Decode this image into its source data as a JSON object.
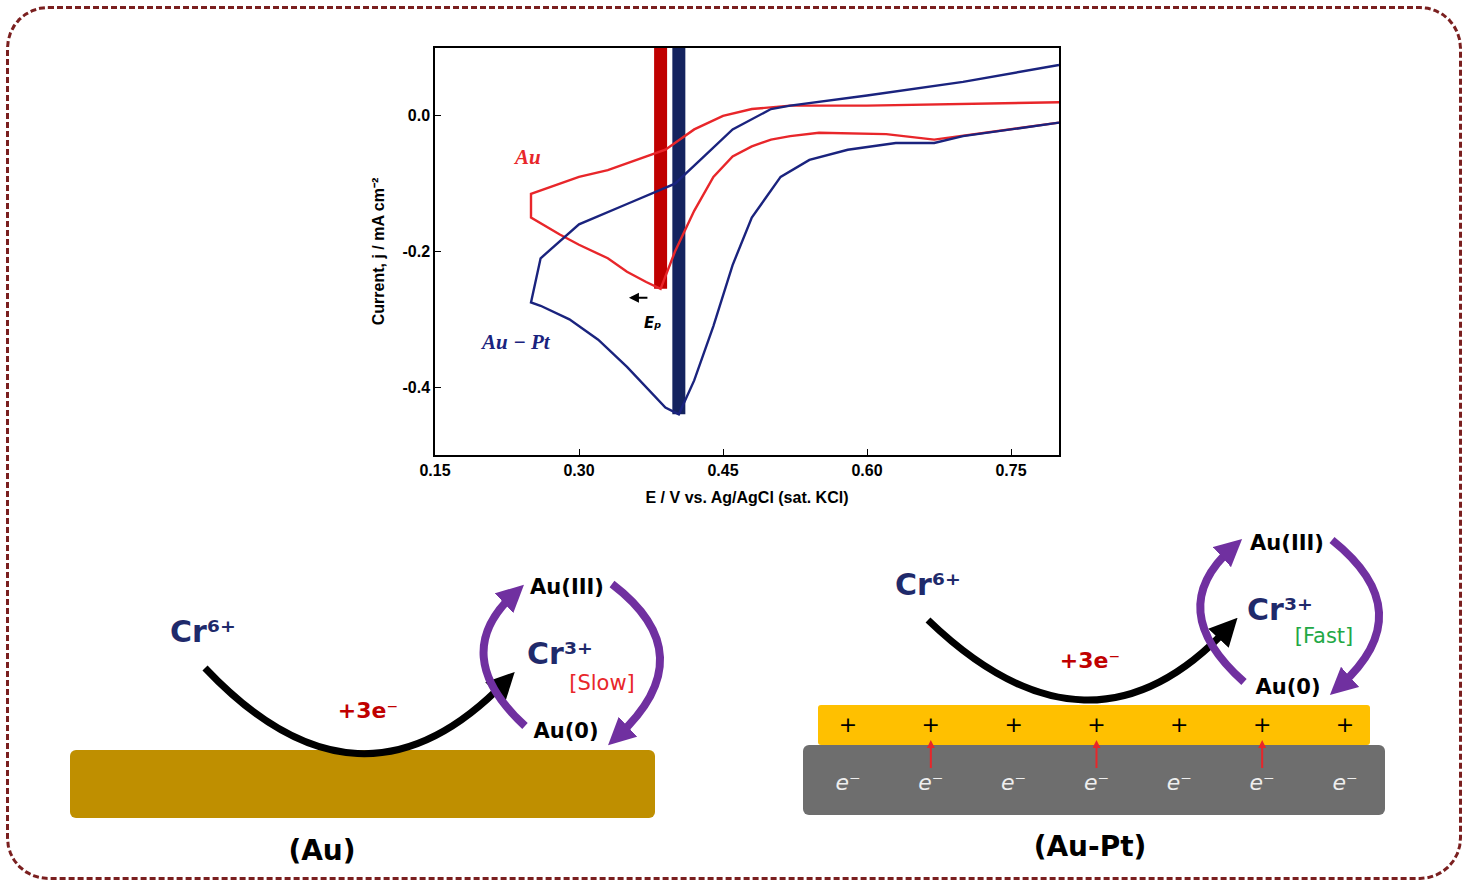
{
  "chart_data": {
    "type": "line",
    "x_label": "E / V vs. Ag/AgCl (sat. KCl)",
    "y_label": "Current, j / mA cm⁻²",
    "xlim": [
      0.15,
      0.8
    ],
    "ylim": [
      -0.5,
      0.1
    ],
    "xticks": [
      0.15,
      {
        "value": 0.3,
        "label": "0.30"
      },
      0.45,
      {
        "value": 0.6,
        "label": "0.60"
      },
      0.75
    ],
    "yticks": [
      {
        "value": 0,
        "label": "0.0"
      },
      -0.2,
      -0.4
    ],
    "grid": false,
    "series": [
      {
        "name": "Au",
        "color": "#e8262a",
        "label_position": [
          0.246,
          -0.06
        ],
        "x": [
          0.8,
          0.75,
          0.7,
          0.67,
          0.62,
          0.55,
          0.52,
          0.5,
          0.48,
          0.46,
          0.44,
          0.42,
          0.4,
          0.385,
          0.37,
          0.35,
          0.33,
          0.3,
          0.28,
          0.25,
          0.25,
          0.27,
          0.3,
          0.33,
          0.36,
          0.39,
          0.42,
          0.45,
          0.48,
          0.52,
          0.6,
          0.7,
          0.8
        ],
        "values": [
          -0.01,
          -0.02,
          -0.03,
          -0.035,
          -0.027,
          -0.025,
          -0.03,
          -0.035,
          -0.045,
          -0.06,
          -0.09,
          -0.14,
          -0.2,
          -0.255,
          -0.245,
          -0.23,
          -0.21,
          -0.19,
          -0.175,
          -0.15,
          -0.115,
          -0.105,
          -0.09,
          -0.08,
          -0.065,
          -0.05,
          -0.02,
          0.0,
          0.01,
          0.015,
          0.015,
          0.017,
          0.02
        ]
      },
      {
        "name": "Au − Pt",
        "color": "#1a237e",
        "label_position": [
          0.234,
          -0.333
        ],
        "x": [
          0.8,
          0.75,
          0.7,
          0.67,
          0.63,
          0.58,
          0.54,
          0.51,
          0.48,
          0.46,
          0.44,
          0.42,
          0.404,
          0.39,
          0.37,
          0.35,
          0.32,
          0.29,
          0.26,
          0.25,
          0.26,
          0.3,
          0.35,
          0.4,
          0.43,
          0.46,
          0.5,
          0.52,
          0.6,
          0.7,
          0.8
        ],
        "values": [
          -0.01,
          -0.02,
          -0.03,
          -0.04,
          -0.04,
          -0.05,
          -0.065,
          -0.09,
          -0.15,
          -0.22,
          -0.31,
          -0.39,
          -0.44,
          -0.43,
          -0.4,
          -0.37,
          -0.33,
          -0.3,
          -0.28,
          -0.275,
          -0.21,
          -0.16,
          -0.13,
          -0.1,
          -0.06,
          -0.02,
          0.01,
          0.015,
          0.03,
          0.05,
          0.075
        ]
      }
    ],
    "peak_markers": [
      {
        "series": "Au",
        "x": 0.385,
        "y": -0.255,
        "color": "#c00000"
      },
      {
        "series": "Au − Pt",
        "x": 0.404,
        "y": -0.44,
        "color": "#14235f"
      }
    ],
    "annotations": [
      {
        "text": "Eₚ",
        "x": 0.377,
        "y": -0.305,
        "arrow_to": [
          0.352,
          -0.268
        ]
      }
    ]
  },
  "diagram": {
    "panels": [
      {
        "label": "(Au)",
        "reactant": "Cr⁶⁺",
        "electrons": "+3e⁻",
        "product": "Cr³⁺",
        "rate": "[Slow]",
        "rate_color": "#e8262a",
        "cycle": [
          "Au(III)",
          "Au(0)"
        ]
      },
      {
        "label": "(Au-Pt)",
        "reactant": "Cr⁶⁺",
        "electrons": "+3e⁻",
        "product": "Cr³⁺",
        "rate": "[Fast]",
        "rate_color": "#22a845",
        "cycle": [
          "Au(III)",
          "Au(0)"
        ],
        "surface_charges": [
          "+",
          "+",
          "+",
          "+",
          "+",
          "+",
          "+"
        ],
        "substrate_electrons": [
          "e⁻",
          "e⁻",
          "e⁻",
          "e⁻",
          "e⁻",
          "e⁻",
          "e⁻"
        ]
      }
    ]
  }
}
